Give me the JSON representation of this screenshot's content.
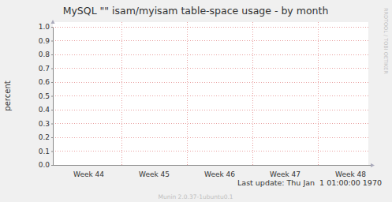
{
  "chart_data": {
    "type": "line",
    "title": "MySQL \"\" isam/myisam table-space usage - by month",
    "y_label": "percent",
    "categories": [
      "Week 44",
      "Week 45",
      "Week 46",
      "Week 47",
      "Week 48"
    ],
    "series": [],
    "ylim": [
      0,
      1
    ],
    "yticks": [
      {
        "value": 0,
        "label": "0.0"
      },
      {
        "value": 0.1,
        "label": "0.1"
      },
      {
        "value": 0.2,
        "label": "0.2"
      },
      {
        "value": 0.3,
        "label": "0.3"
      },
      {
        "value": 0.4,
        "label": "0.4"
      },
      {
        "value": 0.5,
        "label": "0.5"
      },
      {
        "value": 0.6,
        "label": "0.6"
      },
      {
        "value": 0.7,
        "label": "0.7"
      },
      {
        "value": 0.8,
        "label": "0.8"
      },
      {
        "value": 0.9,
        "label": "0.9"
      },
      {
        "value": 1,
        "label": "1.0"
      }
    ],
    "grid": true,
    "last_update": "Last update: Thu Jan  1 01:00:00 1970",
    "watermark": "RRDTOOL / TOBI OETIKER",
    "footer": "Munin 2.0.37-1ubuntu0.1"
  }
}
